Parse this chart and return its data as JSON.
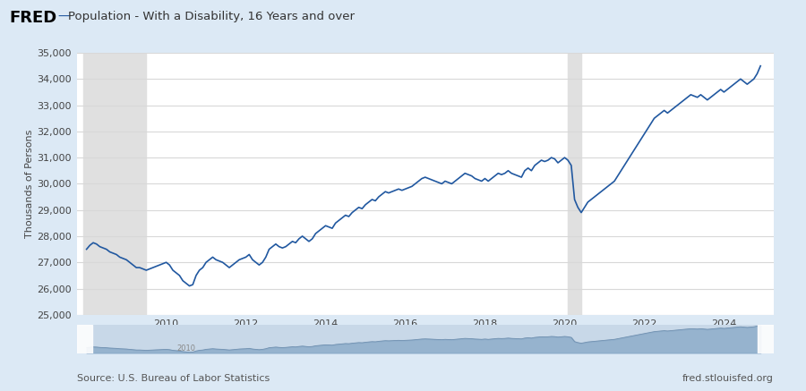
{
  "title": "Population - With a Disability, 16 Years and over",
  "ylabel": "Thousands of Persons",
  "line_color": "#2158a0",
  "bg_color": "#dce9f5",
  "plot_bg": "#ffffff",
  "recession_color": "#e0e0e0",
  "ylim": [
    25000,
    35000
  ],
  "yticks": [
    25000,
    26000,
    27000,
    28000,
    29000,
    30000,
    31000,
    32000,
    33000,
    34000,
    35000
  ],
  "source_left": "Source: U.S. Bureau of Labor Statistics",
  "source_right": "fred.stlouisfed.org",
  "recession_shades": [
    {
      "start": 2007.917,
      "end": 2009.5
    },
    {
      "start": 2020.083,
      "end": 2020.417
    }
  ],
  "xlim_start": 2007.75,
  "xlim_end": 2025.25,
  "xtick_years": [
    2010,
    2012,
    2014,
    2016,
    2018,
    2020,
    2022,
    2024
  ],
  "data": {
    "years": [
      2008.0,
      2008.083,
      2008.167,
      2008.25,
      2008.333,
      2008.417,
      2008.5,
      2008.583,
      2008.667,
      2008.75,
      2008.833,
      2008.917,
      2009.0,
      2009.083,
      2009.167,
      2009.25,
      2009.333,
      2009.417,
      2009.5,
      2009.583,
      2009.667,
      2009.75,
      2009.833,
      2009.917,
      2010.0,
      2010.083,
      2010.167,
      2010.25,
      2010.333,
      2010.417,
      2010.5,
      2010.583,
      2010.667,
      2010.75,
      2010.833,
      2010.917,
      2011.0,
      2011.083,
      2011.167,
      2011.25,
      2011.333,
      2011.417,
      2011.5,
      2011.583,
      2011.667,
      2011.75,
      2011.833,
      2011.917,
      2012.0,
      2012.083,
      2012.167,
      2012.25,
      2012.333,
      2012.417,
      2012.5,
      2012.583,
      2012.667,
      2012.75,
      2012.833,
      2012.917,
      2013.0,
      2013.083,
      2013.167,
      2013.25,
      2013.333,
      2013.417,
      2013.5,
      2013.583,
      2013.667,
      2013.75,
      2013.833,
      2013.917,
      2014.0,
      2014.083,
      2014.167,
      2014.25,
      2014.333,
      2014.417,
      2014.5,
      2014.583,
      2014.667,
      2014.75,
      2014.833,
      2014.917,
      2015.0,
      2015.083,
      2015.167,
      2015.25,
      2015.333,
      2015.417,
      2015.5,
      2015.583,
      2015.667,
      2015.75,
      2015.833,
      2015.917,
      2016.0,
      2016.083,
      2016.167,
      2016.25,
      2016.333,
      2016.417,
      2016.5,
      2016.583,
      2016.667,
      2016.75,
      2016.833,
      2016.917,
      2017.0,
      2017.083,
      2017.167,
      2017.25,
      2017.333,
      2017.417,
      2017.5,
      2017.583,
      2017.667,
      2017.75,
      2017.833,
      2017.917,
      2018.0,
      2018.083,
      2018.167,
      2018.25,
      2018.333,
      2018.417,
      2018.5,
      2018.583,
      2018.667,
      2018.75,
      2018.833,
      2018.917,
      2019.0,
      2019.083,
      2019.167,
      2019.25,
      2019.333,
      2019.417,
      2019.5,
      2019.583,
      2019.667,
      2019.75,
      2019.833,
      2019.917,
      2020.0,
      2020.083,
      2020.167,
      2020.25,
      2020.333,
      2020.417,
      2020.5,
      2020.583,
      2020.667,
      2020.75,
      2020.833,
      2020.917,
      2021.0,
      2021.083,
      2021.167,
      2021.25,
      2021.333,
      2021.417,
      2021.5,
      2021.583,
      2021.667,
      2021.75,
      2021.833,
      2021.917,
      2022.0,
      2022.083,
      2022.167,
      2022.25,
      2022.333,
      2022.417,
      2022.5,
      2022.583,
      2022.667,
      2022.75,
      2022.833,
      2022.917,
      2023.0,
      2023.083,
      2023.167,
      2023.25,
      2023.333,
      2023.417,
      2023.5,
      2023.583,
      2023.667,
      2023.75,
      2023.833,
      2023.917,
      2024.0,
      2024.083,
      2024.167,
      2024.25,
      2024.333,
      2024.417,
      2024.5,
      2024.583,
      2024.667,
      2024.75,
      2024.833,
      2024.917
    ],
    "values": [
      27500,
      27650,
      27750,
      27700,
      27600,
      27550,
      27500,
      27400,
      27350,
      27300,
      27200,
      27150,
      27100,
      27000,
      26900,
      26800,
      26800,
      26750,
      26700,
      26750,
      26800,
      26850,
      26900,
      26950,
      27000,
      26900,
      26700,
      26600,
      26500,
      26300,
      26200,
      26100,
      26150,
      26500,
      26700,
      26800,
      27000,
      27100,
      27200,
      27100,
      27050,
      27000,
      26900,
      26800,
      26900,
      27000,
      27100,
      27150,
      27200,
      27300,
      27100,
      27000,
      26900,
      27000,
      27200,
      27500,
      27600,
      27700,
      27600,
      27550,
      27600,
      27700,
      27800,
      27750,
      27900,
      28000,
      27900,
      27800,
      27900,
      28100,
      28200,
      28300,
      28400,
      28350,
      28300,
      28500,
      28600,
      28700,
      28800,
      28750,
      28900,
      29000,
      29100,
      29050,
      29200,
      29300,
      29400,
      29350,
      29500,
      29600,
      29700,
      29650,
      29700,
      29750,
      29800,
      29750,
      29800,
      29850,
      29900,
      30000,
      30100,
      30200,
      30250,
      30200,
      30150,
      30100,
      30050,
      30000,
      30100,
      30050,
      30000,
      30100,
      30200,
      30300,
      30400,
      30350,
      30300,
      30200,
      30150,
      30100,
      30200,
      30100,
      30200,
      30300,
      30400,
      30350,
      30400,
      30500,
      30400,
      30350,
      30300,
      30250,
      30500,
      30600,
      30500,
      30700,
      30800,
      30900,
      30850,
      30900,
      31000,
      30950,
      30800,
      30900,
      31000,
      30900,
      30700,
      29400,
      29100,
      28900,
      29100,
      29300,
      29400,
      29500,
      29600,
      29700,
      29800,
      29900,
      30000,
      30100,
      30300,
      30500,
      30700,
      30900,
      31100,
      31300,
      31500,
      31700,
      31900,
      32100,
      32300,
      32500,
      32600,
      32700,
      32800,
      32700,
      32800,
      32900,
      33000,
      33100,
      33200,
      33300,
      33400,
      33350,
      33300,
      33400,
      33300,
      33200,
      33300,
      33400,
      33500,
      33600,
      33500,
      33600,
      33700,
      33800,
      33900,
      34000,
      33900,
      33800,
      33900,
      34000,
      34200,
      34500
    ]
  }
}
